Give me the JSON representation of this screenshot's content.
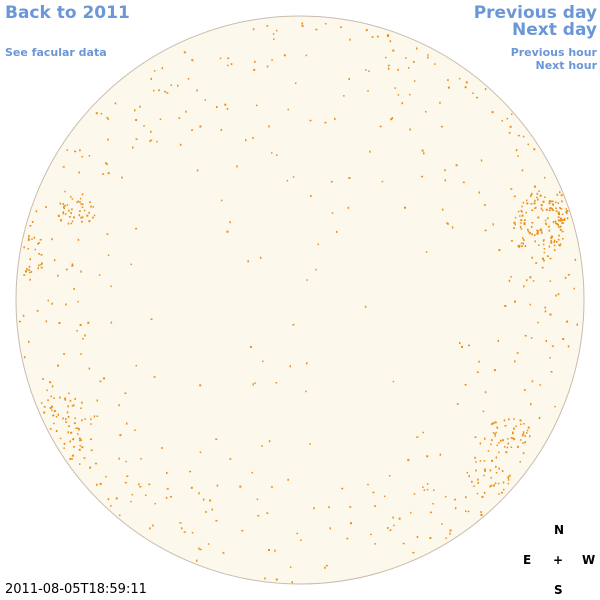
{
  "nav": {
    "back_to_year": "Back to 2011",
    "see_facular": "See facular data",
    "previous_day": "Previous day",
    "next_day": "Next day",
    "previous_hour": "Previous hour",
    "next_hour": "Next hour"
  },
  "compass": {
    "north": "N",
    "east": "E",
    "center": "+",
    "west": "W",
    "south": "S"
  },
  "timestamp": "2011-08-05T18:59:11",
  "colors": {
    "link": "#6b97d6",
    "disk_fill": "#fdf8ec",
    "disk_edge": "#c8bcae",
    "facula": "#e8901a"
  }
}
